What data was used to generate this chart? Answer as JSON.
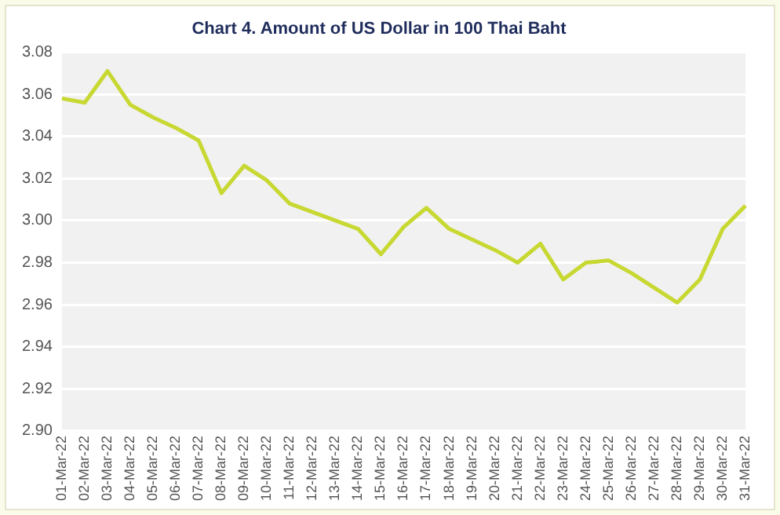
{
  "chart_data": {
    "type": "line",
    "title": "Chart 4. Amount of US Dollar in 100 Thai Baht",
    "categories": [
      "01-Mar-22",
      "02-Mar-22",
      "03-Mar-22",
      "04-Mar-22",
      "05-Mar-22",
      "06-Mar-22",
      "07-Mar-22",
      "08-Mar-22",
      "09-Mar-22",
      "10-Mar-22",
      "11-Mar-22",
      "12-Mar-22",
      "13-Mar-22",
      "14-Mar-22",
      "15-Mar-22",
      "16-Mar-22",
      "17-Mar-22",
      "18-Mar-22",
      "19-Mar-22",
      "20-Mar-22",
      "21-Mar-22",
      "22-Mar-22",
      "23-Mar-22",
      "24-Mar-22",
      "25-Mar-22",
      "26-Mar-22",
      "27-Mar-22",
      "28-Mar-22",
      "29-Mar-22",
      "30-Mar-22",
      "31-Mar-22"
    ],
    "series": [
      {
        "color": "#c8d832",
        "values": [
          3.058,
          3.056,
          3.071,
          3.055,
          3.049,
          3.044,
          3.038,
          3.013,
          3.026,
          3.019,
          3.008,
          3.004,
          3.0,
          2.996,
          2.984,
          2.997,
          3.006,
          2.996,
          2.991,
          2.986,
          2.98,
          2.989,
          2.972,
          2.98,
          2.981,
          2.975,
          2.968,
          2.961,
          2.972,
          2.996,
          3.007
        ]
      }
    ],
    "ylim": [
      2.9,
      3.08
    ],
    "yticks": [
      {
        "value": 2.9,
        "label": "2.90"
      },
      {
        "value": 2.92,
        "label": "2.92"
      },
      {
        "value": 2.94,
        "label": "2.94"
      },
      {
        "value": 2.96,
        "label": "2.96"
      },
      {
        "value": 2.98,
        "label": "2.98"
      },
      {
        "value": 3.0,
        "label": "3.00"
      },
      {
        "value": 3.02,
        "label": "3.02"
      },
      {
        "value": 3.04,
        "label": "3.04"
      },
      {
        "value": 3.06,
        "label": "3.06"
      },
      {
        "value": 3.08,
        "label": "3.08"
      }
    ],
    "grid": "y",
    "legend": false,
    "marker": "none",
    "line_style": "solid"
  }
}
